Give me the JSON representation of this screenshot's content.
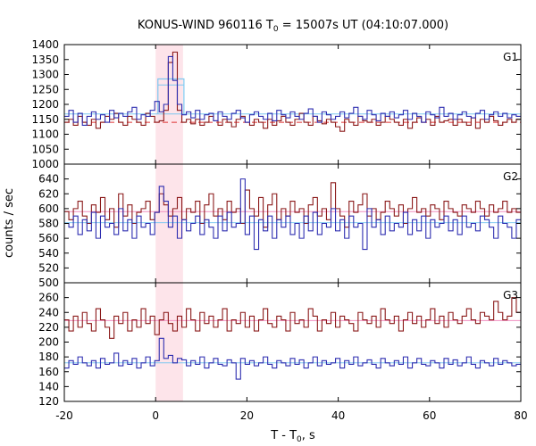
{
  "chart_data": {
    "type": "line",
    "title_main": "KONUS-WIND 960116 T",
    "title_sub": "0",
    "title_rest": " = 15007s UT (04:10:07.000)",
    "xlabel_main": "T - T",
    "xlabel_sub": "0",
    "xlabel_rest": ", s",
    "ylabel": "counts / sec",
    "xlim": [
      -20,
      80
    ],
    "x_ticks": [
      "-20",
      "0",
      "20",
      "40",
      "60",
      "80"
    ],
    "x_tick_values": [
      -20,
      0,
      20,
      40,
      60,
      80
    ],
    "highlight_interval": [
      0,
      6
    ],
    "colors": {
      "dark_red": "#8b1a1a",
      "dark_blue": "#2e2eb0",
      "cyan_fit": "#7fc8f0",
      "pink_fit": "#f08fc0",
      "red_dashed": "#e03030",
      "highlight": "#fde4ea"
    },
    "panels": [
      {
        "label": "G1",
        "ylim": [
          1000,
          1400
        ],
        "y_ticks": [
          "1000",
          "1050",
          "1100",
          "1150",
          "1200",
          "1250",
          "1300",
          "1350",
          "1400"
        ],
        "y_tick_values": [
          1000,
          1050,
          1100,
          1150,
          1200,
          1250,
          1300,
          1350,
          1400
        ],
        "blue_fit_level": 1168,
        "red_fit_level": 1140,
        "pulse_box": {
          "x": [
            0.5,
            6.2
          ],
          "blue_top": 1285,
          "cyan_top": 1265
        },
        "series": [
          {
            "color_key": "dark_red",
            "values": [
              1140,
              1150,
              1130,
              1160,
              1140,
              1130,
              1150,
              1120,
              1140,
              1160,
              1150,
              1170,
              1140,
              1130,
              1160,
              1150,
              1140,
              1130,
              1170,
              1160,
              1140,
              1145,
              1180,
              1340,
              1375,
              1180,
              1140,
              1150,
              1135,
              1150,
              1130,
              1140,
              1160,
              1145,
              1130,
              1150,
              1140,
              1125,
              1150,
              1160,
              1140,
              1130,
              1150,
              1140,
              1120,
              1150,
              1130,
              1145,
              1160,
              1140,
              1130,
              1150,
              1170,
              1140,
              1130,
              1160,
              1145,
              1135,
              1150,
              1140,
              1125,
              1110,
              1150,
              1140,
              1130,
              1160,
              1145,
              1140,
              1150,
              1130,
              1140,
              1160,
              1150,
              1140,
              1130,
              1150,
              1120,
              1140,
              1155,
              1140,
              1150,
              1130,
              1160,
              1140,
              1145,
              1150,
              1130,
              1150,
              1140,
              1130,
              1155,
              1120,
              1150,
              1140,
              1160,
              1145,
              1130,
              1140,
              1150,
              1140,
              1150
            ]
          },
          {
            "color_key": "dark_blue",
            "values": [
              1160,
              1180,
              1140,
              1170,
              1130,
              1160,
              1175,
              1150,
              1165,
              1140,
              1180,
              1155,
              1170,
              1160,
              1175,
              1190,
              1150,
              1165,
              1160,
              1180,
              1210,
              1175,
              1200,
              1360,
              1280,
              1200,
              1165,
              1175,
              1155,
              1180,
              1150,
              1165,
              1170,
              1145,
              1175,
              1160,
              1150,
              1170,
              1180,
              1155,
              1140,
              1165,
              1175,
              1160,
              1150,
              1170,
              1145,
              1180,
              1165,
              1155,
              1175,
              1160,
              1150,
              1170,
              1185,
              1160,
              1140,
              1175,
              1165,
              1150,
              1160,
              1175,
              1155,
              1170,
              1190,
              1160,
              1150,
              1180,
              1165,
              1145,
              1170,
              1160,
              1175,
              1155,
              1165,
              1180,
              1150,
              1170,
              1160,
              1140,
              1175,
              1165,
              1155,
              1190,
              1160,
              1170,
              1150,
              1165,
              1175,
              1160,
              1155,
              1170,
              1180,
              1150,
              1165,
              1175,
              1160,
              1170,
              1155,
              1165,
              1160
            ]
          }
        ]
      },
      {
        "label": "G2",
        "ylim": [
          500,
          660
        ],
        "y_ticks": [
          "500",
          "520",
          "540",
          "560",
          "580",
          "600",
          "620",
          "640"
        ],
        "y_tick_values": [
          500,
          520,
          540,
          560,
          580,
          600,
          620,
          640
        ],
        "blue_fit_level": 581,
        "red_fit_level": 596,
        "series": [
          {
            "color_key": "dark_red",
            "values": [
              596,
              585,
              600,
              610,
              590,
              580,
              605,
              595,
              615,
              585,
              600,
              575,
              620,
              590,
              605,
              580,
              595,
              600,
              610,
              585,
              595,
              620,
              605,
              590,
              600,
              615,
              585,
              600,
              595,
              610,
              580,
              605,
              620,
              590,
              600,
              585,
              610,
              595,
              600,
              580,
              625,
              600,
              590,
              615,
              575,
              605,
              620,
              585,
              600,
              590,
              610,
              595,
              600,
              580,
              605,
              615,
              590,
              600,
              585,
              635,
              600,
              590,
              575,
              610,
              595,
              605,
              620,
              590,
              600,
              585,
              595,
              610,
              600,
              590,
              605,
              580,
              600,
              615,
              595,
              600,
              590,
              605,
              600,
              585,
              610,
              600,
              595,
              590,
              605,
              600,
              595,
              610,
              600,
              590,
              605,
              595,
              600,
              610,
              595,
              600,
              595
            ]
          },
          {
            "color_key": "dark_blue",
            "values": [
              580,
              575,
              590,
              565,
              585,
              570,
              595,
              560,
              590,
              575,
              580,
              565,
              600,
              570,
              585,
              560,
              590,
              575,
              580,
              565,
              595,
              630,
              610,
              575,
              590,
              560,
              585,
              570,
              580,
              590,
              565,
              585,
              575,
              560,
              590,
              570,
              595,
              575,
              580,
              640,
              565,
              590,
              545,
              585,
              570,
              590,
              560,
              585,
              575,
              590,
              565,
              580,
              560,
              590,
              570,
              595,
              565,
              580,
              575,
              600,
              570,
              585,
              560,
              590,
              575,
              580,
              545,
              600,
              575,
              585,
              565,
              590,
              570,
              580,
              575,
              595,
              565,
              585,
              570,
              590,
              560,
              585,
              575,
              580,
              590,
              570,
              585,
              565,
              590,
              575,
              580,
              570,
              590,
              585,
              575,
              560,
              590,
              580,
              575,
              560,
              585
            ]
          }
        ]
      },
      {
        "label": "G3",
        "ylim": [
          120,
          280
        ],
        "y_ticks": [
          "120",
          "140",
          "160",
          "180",
          "200",
          "220",
          "240",
          "260"
        ],
        "y_tick_values": [
          120,
          140,
          160,
          180,
          200,
          220,
          240,
          260
        ],
        "blue_fit_level": 172,
        "red_fit_level": 229,
        "series": [
          {
            "color_key": "dark_red",
            "values": [
              230,
              215,
              235,
              220,
              240,
              225,
              215,
              245,
              230,
              220,
              205,
              235,
              225,
              240,
              215,
              230,
              220,
              245,
              225,
              235,
              210,
              230,
              240,
              225,
              215,
              235,
              220,
              245,
              230,
              215,
              240,
              225,
              235,
              220,
              230,
              245,
              215,
              230,
              225,
              240,
              220,
              235,
              215,
              230,
              245,
              225,
              220,
              235,
              230,
              215,
              240,
              225,
              230,
              220,
              245,
              235,
              215,
              230,
              225,
              240,
              220,
              235,
              230,
              225,
              215,
              240,
              230,
              225,
              235,
              220,
              245,
              230,
              225,
              235,
              215,
              230,
              240,
              225,
              235,
              220,
              230,
              245,
              225,
              235,
              220,
              240,
              230,
              225,
              235,
              245,
              230,
              225,
              240,
              235,
              230,
              255,
              240,
              230,
              235,
              260,
              240
            ]
          },
          {
            "color_key": "dark_blue",
            "values": [
              165,
              175,
              170,
              180,
              172,
              168,
              175,
              165,
              178,
              170,
              172,
              185,
              168,
              175,
              170,
              178,
              165,
              172,
              180,
              168,
              175,
              205,
              178,
              182,
              172,
              178,
              176,
              168,
              175,
              170,
              180,
              165,
              172,
              178,
              170,
              168,
              176,
              172,
              150,
              178,
              170,
              175,
              168,
              172,
              180,
              170,
              165,
              175,
              172,
              168,
              178,
              170,
              176,
              165,
              172,
              180,
              168,
              175,
              170,
              172,
              178,
              165,
              175,
              170,
              180,
              168,
              172,
              176,
              170,
              165,
              178,
              172,
              168,
              175,
              170,
              180,
              165,
              172,
              178,
              170,
              168,
              175,
              172,
              165,
              178,
              170,
              176,
              168,
              172,
              180,
              170,
              165,
              175,
              172,
              168,
              178,
              170,
              175,
              172,
              168,
              170
            ]
          }
        ]
      }
    ]
  }
}
